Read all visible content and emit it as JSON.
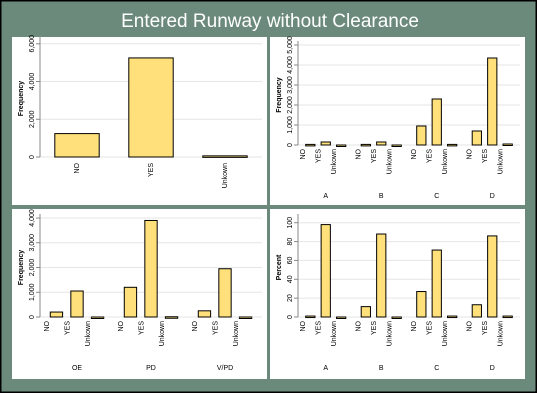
{
  "title": "Entered Runway without Clearance",
  "chart_data": [
    {
      "type": "bar",
      "y_label": "Frequency",
      "categories": [
        "NO",
        "YES",
        "Unkown"
      ],
      "values": [
        1240,
        5250,
        60
      ],
      "color": "#ffe07a",
      "ylim": [
        0,
        6200
      ],
      "yticks": [
        0,
        {
          "value": 2000,
          "label": "2,000"
        },
        {
          "value": 4000,
          "label": "4,000"
        },
        {
          "value": 6000,
          "label": "6,000"
        }
      ],
      "grid": true
    },
    {
      "type": "grouped_bar",
      "y_label": "Frequency",
      "categories": [
        "A",
        "B",
        "C",
        "D"
      ],
      "series": [
        {
          "name": "NO",
          "color": "#ffe07a",
          "values": [
            30,
            30,
            950,
            700
          ]
        },
        {
          "name": "YES",
          "color": "#ffe07a",
          "values": [
            150,
            150,
            2300,
            4350
          ]
        },
        {
          "name": "Unkown",
          "color": "#ffe07a",
          "values": [
            0,
            0,
            30,
            50
          ]
        }
      ],
      "ylim": [
        0,
        5000
      ],
      "yticks": [
        0,
        {
          "value": 1000,
          "label": "1,000"
        },
        {
          "value": 2000,
          "label": "2,000"
        },
        {
          "value": 3000,
          "label": "3,000"
        },
        {
          "value": 4000,
          "label": "4,000"
        },
        {
          "value": 5000,
          "label": "5,000"
        }
      ],
      "grid": true
    },
    {
      "type": "grouped_bar",
      "y_label": "Frequency",
      "categories": [
        "OE",
        "PD",
        "V/PD"
      ],
      "series": [
        {
          "name": "NO",
          "color": "#ffe07a",
          "values": [
            200,
            1200,
            250
          ]
        },
        {
          "name": "YES",
          "color": "#ffe07a",
          "values": [
            1050,
            3900,
            1950
          ]
        },
        {
          "name": "Unkown",
          "color": "#ffe07a",
          "values": [
            0,
            10,
            0
          ]
        }
      ],
      "ylim": [
        0,
        4000
      ],
      "yticks": [
        0,
        {
          "value": 1000,
          "label": "1,000"
        },
        {
          "value": 2000,
          "label": "2,000"
        },
        {
          "value": 3000,
          "label": "3,000"
        },
        {
          "value": 4000,
          "label": "4,000"
        }
      ],
      "grid": true
    },
    {
      "type": "grouped_bar",
      "y_label": "Percent",
      "categories": [
        "A",
        "B",
        "C",
        "D"
      ],
      "series": [
        {
          "name": "NO",
          "color": "#ffe07a",
          "values": [
            1,
            11,
            27,
            13
          ]
        },
        {
          "name": "YES",
          "color": "#ffe07a",
          "values": [
            98,
            88,
            71,
            86
          ]
        },
        {
          "name": "Unkown",
          "color": "#ffe07a",
          "values": [
            0,
            0,
            1,
            1
          ]
        }
      ],
      "ylim": [
        0,
        105
      ],
      "yticks": [
        0,
        20,
        40,
        60,
        80,
        100
      ],
      "grid": true
    }
  ]
}
